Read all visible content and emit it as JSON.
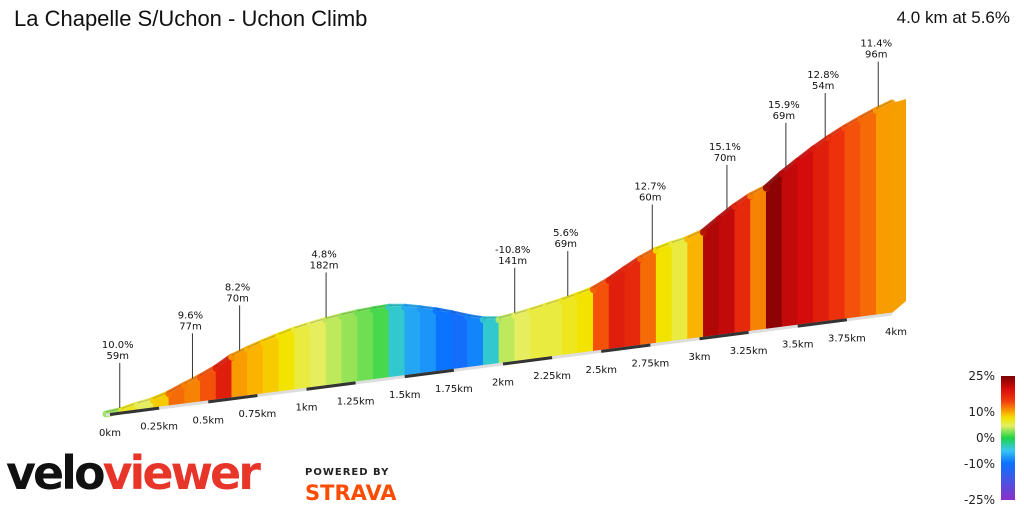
{
  "header": {
    "title": "La Chapelle S/Uchon - Uchon Climb",
    "summary": "4.0 km at 5.6%"
  },
  "chart_data": {
    "type": "area",
    "title": "La Chapelle S/Uchon - Uchon Climb",
    "xlim": [
      0,
      4.0
    ],
    "x_unit": "km",
    "x_ticks": [
      "0km",
      "0.25km",
      "0.5km",
      "0.75km",
      "1km",
      "1.25km",
      "1.5km",
      "1.75km",
      "2km",
      "2.25km",
      "2.5km",
      "2.75km",
      "3km",
      "3.25km",
      "3.5km",
      "3.75km",
      "4km"
    ],
    "segment_gradients": [
      3,
      7,
      5,
      9,
      13,
      12,
      14,
      18,
      11,
      10,
      9,
      8,
      6,
      5,
      4,
      3,
      2,
      1,
      -4,
      -7,
      -8,
      -10,
      -11,
      -9,
      -4,
      4,
      5,
      6,
      6,
      7,
      8,
      14,
      18,
      17,
      13,
      8,
      6,
      10,
      22,
      21,
      17,
      12,
      24,
      21,
      20,
      18,
      16,
      14,
      13,
      11
    ],
    "annotations": [
      {
        "km": 0.07,
        "gradient": "10.0%",
        "length": "59m"
      },
      {
        "km": 0.44,
        "gradient": "9.6%",
        "length": "77m"
      },
      {
        "km": 0.68,
        "gradient": "8.2%",
        "length": "70m"
      },
      {
        "km": 1.12,
        "gradient": "4.8%",
        "length": "182m"
      },
      {
        "km": 2.08,
        "gradient": "-10.8%",
        "length": "141m"
      },
      {
        "km": 2.35,
        "gradient": "5.6%",
        "length": "69m"
      },
      {
        "km": 2.78,
        "gradient": "12.7%",
        "length": "60m"
      },
      {
        "km": 3.16,
        "gradient": "15.1%",
        "length": "70m"
      },
      {
        "km": 3.46,
        "gradient": "15.9%",
        "length": "69m"
      },
      {
        "km": 3.66,
        "gradient": "12.8%",
        "length": "54m"
      },
      {
        "km": 3.93,
        "gradient": "11.4%",
        "length": "96m"
      }
    ],
    "legend": {
      "title": "gradient",
      "ticks": [
        "25%",
        "10%",
        "0%",
        "-10%",
        "-25%"
      ],
      "values": [
        25,
        10,
        0,
        -10,
        -25
      ],
      "colors": {
        "-25": "#8b30c9",
        "-10": "#0a74ff",
        "-5": "#37c7ef",
        "0": "#1fd34a",
        "5": "#e6ee60",
        "8": "#f2e400",
        "10": "#fab400",
        "15": "#f23a0c",
        "20": "#d40c0c",
        "25": "#7b0000"
      },
      "position": "bottom-right"
    }
  },
  "branding": {
    "veloviewer_part1": "velo",
    "veloviewer_part2": "viewer",
    "powered_by": "POWERED BY",
    "strava": "STRAVA"
  }
}
